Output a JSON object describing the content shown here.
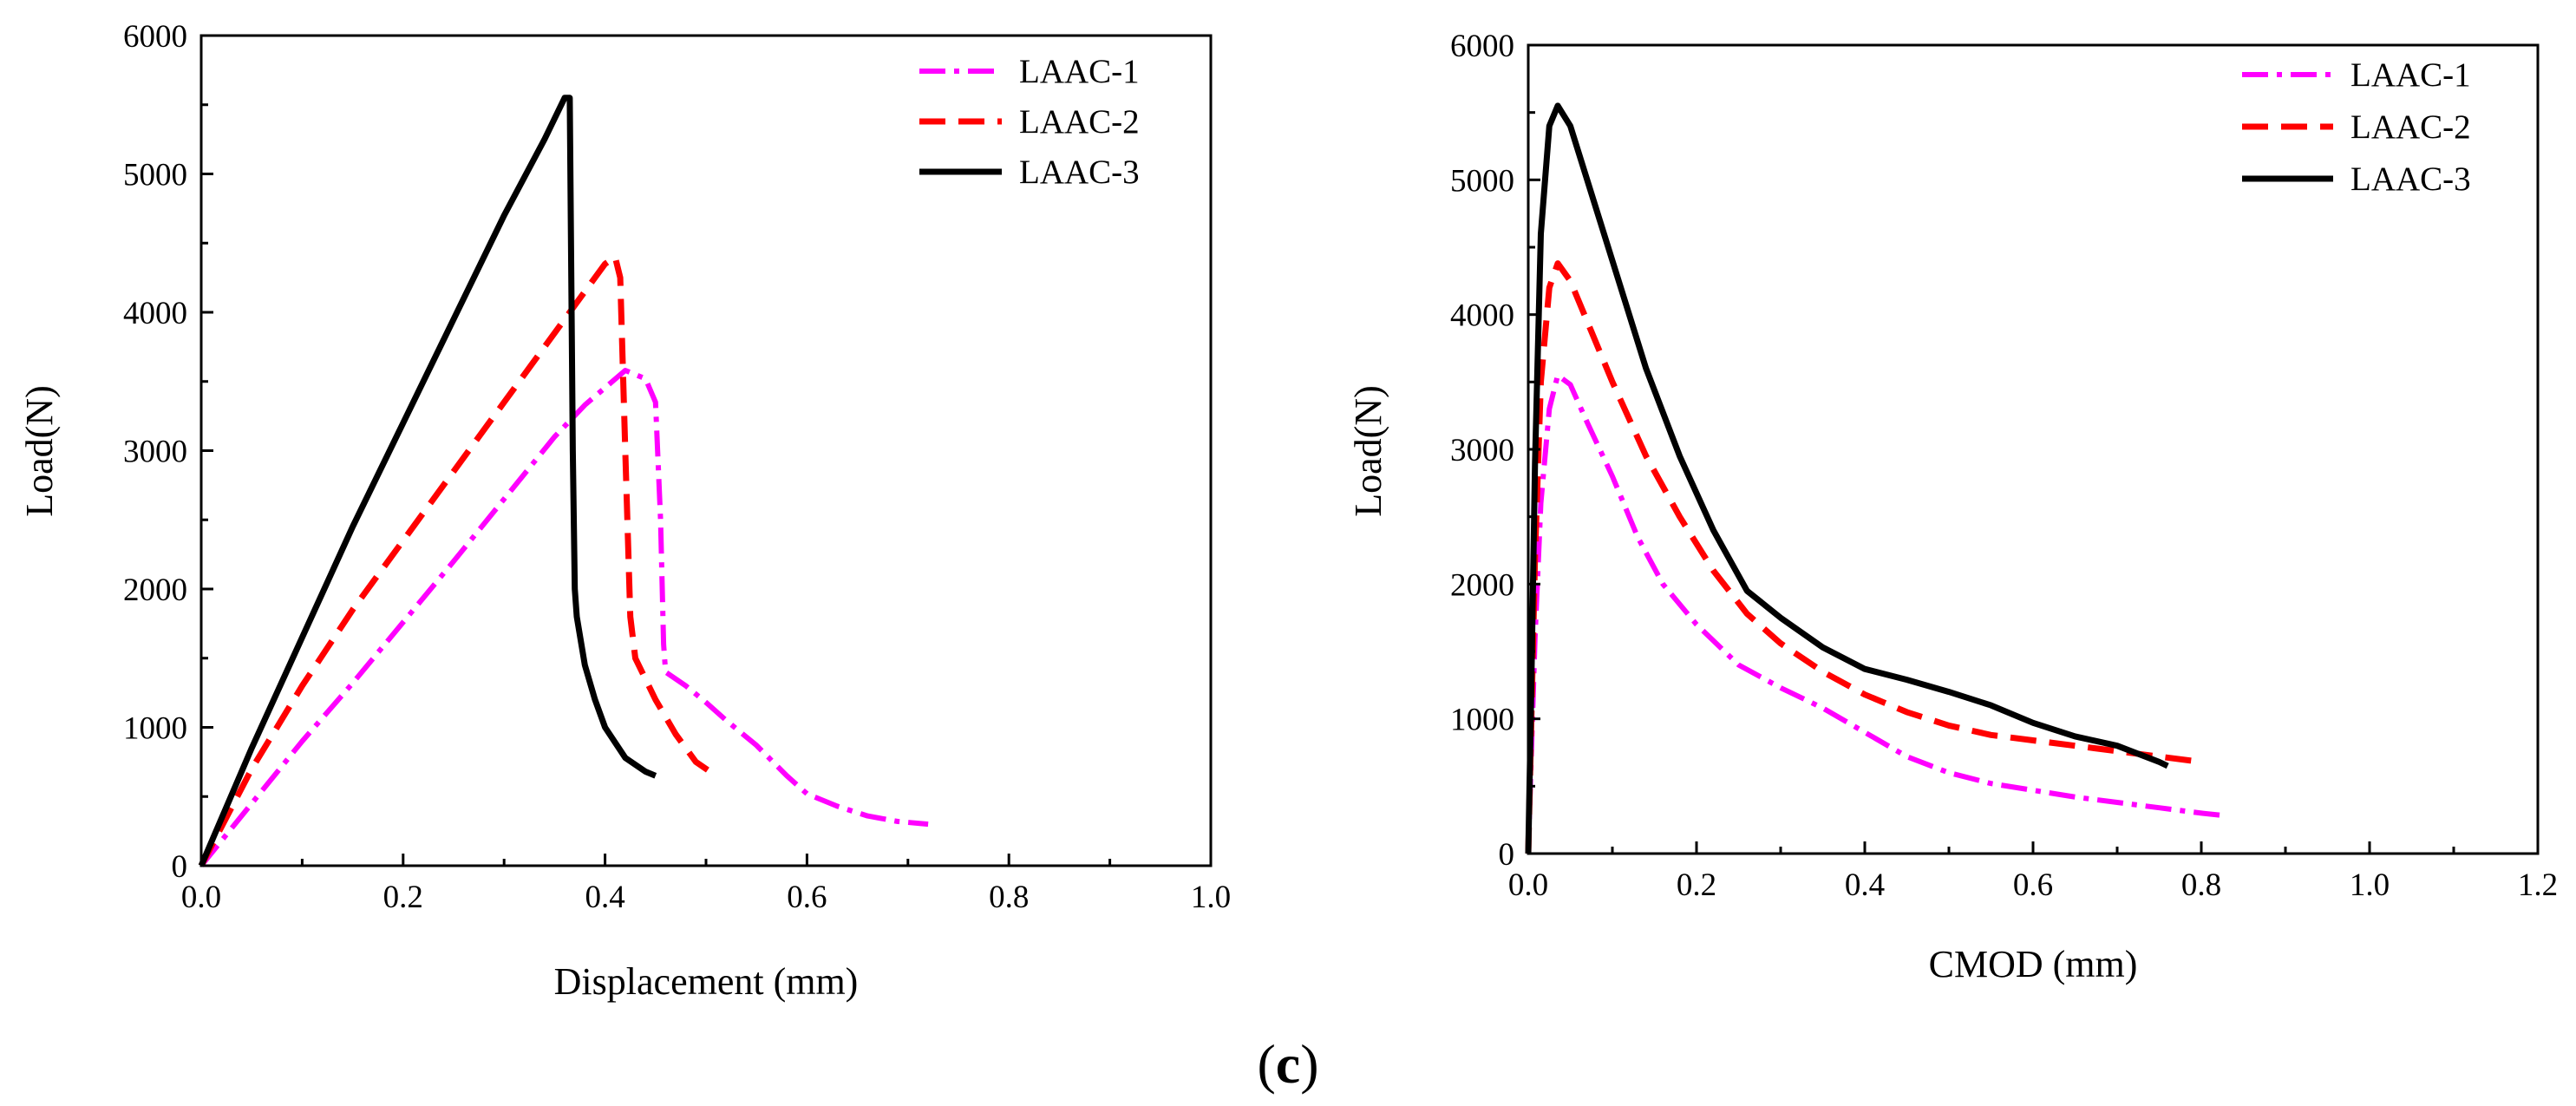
{
  "figure": {
    "caption_open": "(",
    "caption_letter": "c",
    "caption_close": ")"
  },
  "colors": {
    "LAAC-1": "#ff00ff",
    "LAAC-2": "#ff0000",
    "LAAC-3": "#000000"
  },
  "chart_data": [
    {
      "type": "line",
      "title": "",
      "xlabel": "Displacement (mm)",
      "ylabel": "Load(N)",
      "xlim": [
        0,
        1.0
      ],
      "ylim": [
        0,
        6000
      ],
      "xticks": [
        "0.0",
        "0.2",
        "0.4",
        "0.6",
        "0.8",
        "1.0"
      ],
      "yticks": [
        "0",
        "1000",
        "2000",
        "3000",
        "4000",
        "5000",
        "6000"
      ],
      "legend_position": "top-right",
      "series": [
        {
          "name": "LAAC-1",
          "style": "dashdot",
          "x": [
            0,
            0.05,
            0.1,
            0.15,
            0.2,
            0.25,
            0.3,
            0.35,
            0.38,
            0.42,
            0.44,
            0.45,
            0.455,
            0.458,
            0.46,
            0.48,
            0.5,
            0.52,
            0.55,
            0.58,
            0.6,
            0.63,
            0.66,
            0.69,
            0.72
          ],
          "y": [
            0,
            450,
            900,
            1320,
            1760,
            2200,
            2650,
            3100,
            3330,
            3580,
            3520,
            3350,
            2500,
            1600,
            1400,
            1300,
            1180,
            1050,
            870,
            650,
            520,
            430,
            360,
            320,
            300
          ]
        },
        {
          "name": "LAAC-2",
          "style": "dashed",
          "x": [
            0,
            0.05,
            0.1,
            0.15,
            0.2,
            0.25,
            0.3,
            0.35,
            0.38,
            0.4,
            0.41,
            0.415,
            0.42,
            0.425,
            0.43,
            0.45,
            0.47,
            0.49,
            0.51
          ],
          "y": [
            0,
            700,
            1300,
            1850,
            2350,
            2850,
            3350,
            3850,
            4150,
            4350,
            4400,
            4250,
            3000,
            1800,
            1500,
            1200,
            950,
            750,
            650
          ]
        },
        {
          "name": "LAAC-3",
          "style": "solid",
          "x": [
            0,
            0.05,
            0.1,
            0.15,
            0.2,
            0.25,
            0.3,
            0.34,
            0.36,
            0.365,
            0.368,
            0.37,
            0.372,
            0.38,
            0.39,
            0.4,
            0.42,
            0.44,
            0.45
          ],
          "y": [
            0,
            850,
            1650,
            2450,
            3200,
            3950,
            4700,
            5250,
            5550,
            5550,
            3000,
            2000,
            1800,
            1450,
            1200,
            1000,
            780,
            680,
            650
          ]
        }
      ]
    },
    {
      "type": "line",
      "title": "",
      "xlabel": "CMOD (mm)",
      "ylabel": "Load(N)",
      "xlim": [
        0,
        1.2
      ],
      "ylim": [
        0,
        6000
      ],
      "xticks": [
        "0.0",
        "0.2",
        "0.4",
        "0.6",
        "0.8",
        "1.0",
        "1.2"
      ],
      "yticks": [
        "0",
        "1000",
        "2000",
        "3000",
        "4000",
        "5000",
        "6000"
      ],
      "legend_position": "top-right",
      "series": [
        {
          "name": "LAAC-1",
          "style": "dashdot",
          "x": [
            0,
            0.003,
            0.008,
            0.015,
            0.025,
            0.035,
            0.05,
            0.07,
            0.1,
            0.13,
            0.16,
            0.2,
            0.25,
            0.3,
            0.35,
            0.4,
            0.45,
            0.5,
            0.55,
            0.6,
            0.65,
            0.7,
            0.75,
            0.8,
            0.83
          ],
          "y": [
            0,
            600,
            1600,
            2600,
            3300,
            3550,
            3480,
            3200,
            2800,
            2350,
            2000,
            1700,
            1400,
            1230,
            1080,
            900,
            720,
            600,
            520,
            470,
            420,
            380,
            340,
            300,
            280
          ]
        },
        {
          "name": "LAAC-2",
          "style": "dashed",
          "x": [
            0,
            0.003,
            0.008,
            0.015,
            0.025,
            0.035,
            0.05,
            0.07,
            0.1,
            0.14,
            0.18,
            0.22,
            0.26,
            0.3,
            0.35,
            0.4,
            0.45,
            0.5,
            0.55,
            0.6,
            0.65,
            0.7,
            0.75,
            0.8
          ],
          "y": [
            0,
            800,
            2200,
            3500,
            4200,
            4380,
            4250,
            3950,
            3500,
            2950,
            2500,
            2100,
            1780,
            1560,
            1350,
            1180,
            1050,
            950,
            880,
            840,
            800,
            760,
            720,
            680
          ]
        },
        {
          "name": "LAAC-3",
          "style": "solid",
          "x": [
            0,
            0.003,
            0.008,
            0.015,
            0.025,
            0.035,
            0.05,
            0.07,
            0.1,
            0.14,
            0.18,
            0.22,
            0.26,
            0.3,
            0.35,
            0.4,
            0.45,
            0.5,
            0.55,
            0.6,
            0.65,
            0.7,
            0.75,
            0.76
          ],
          "y": [
            0,
            1000,
            2900,
            4600,
            5400,
            5550,
            5400,
            5000,
            4400,
            3600,
            2950,
            2400,
            1950,
            1750,
            1530,
            1370,
            1290,
            1200,
            1100,
            970,
            870,
            800,
            680,
            650
          ]
        }
      ]
    }
  ]
}
